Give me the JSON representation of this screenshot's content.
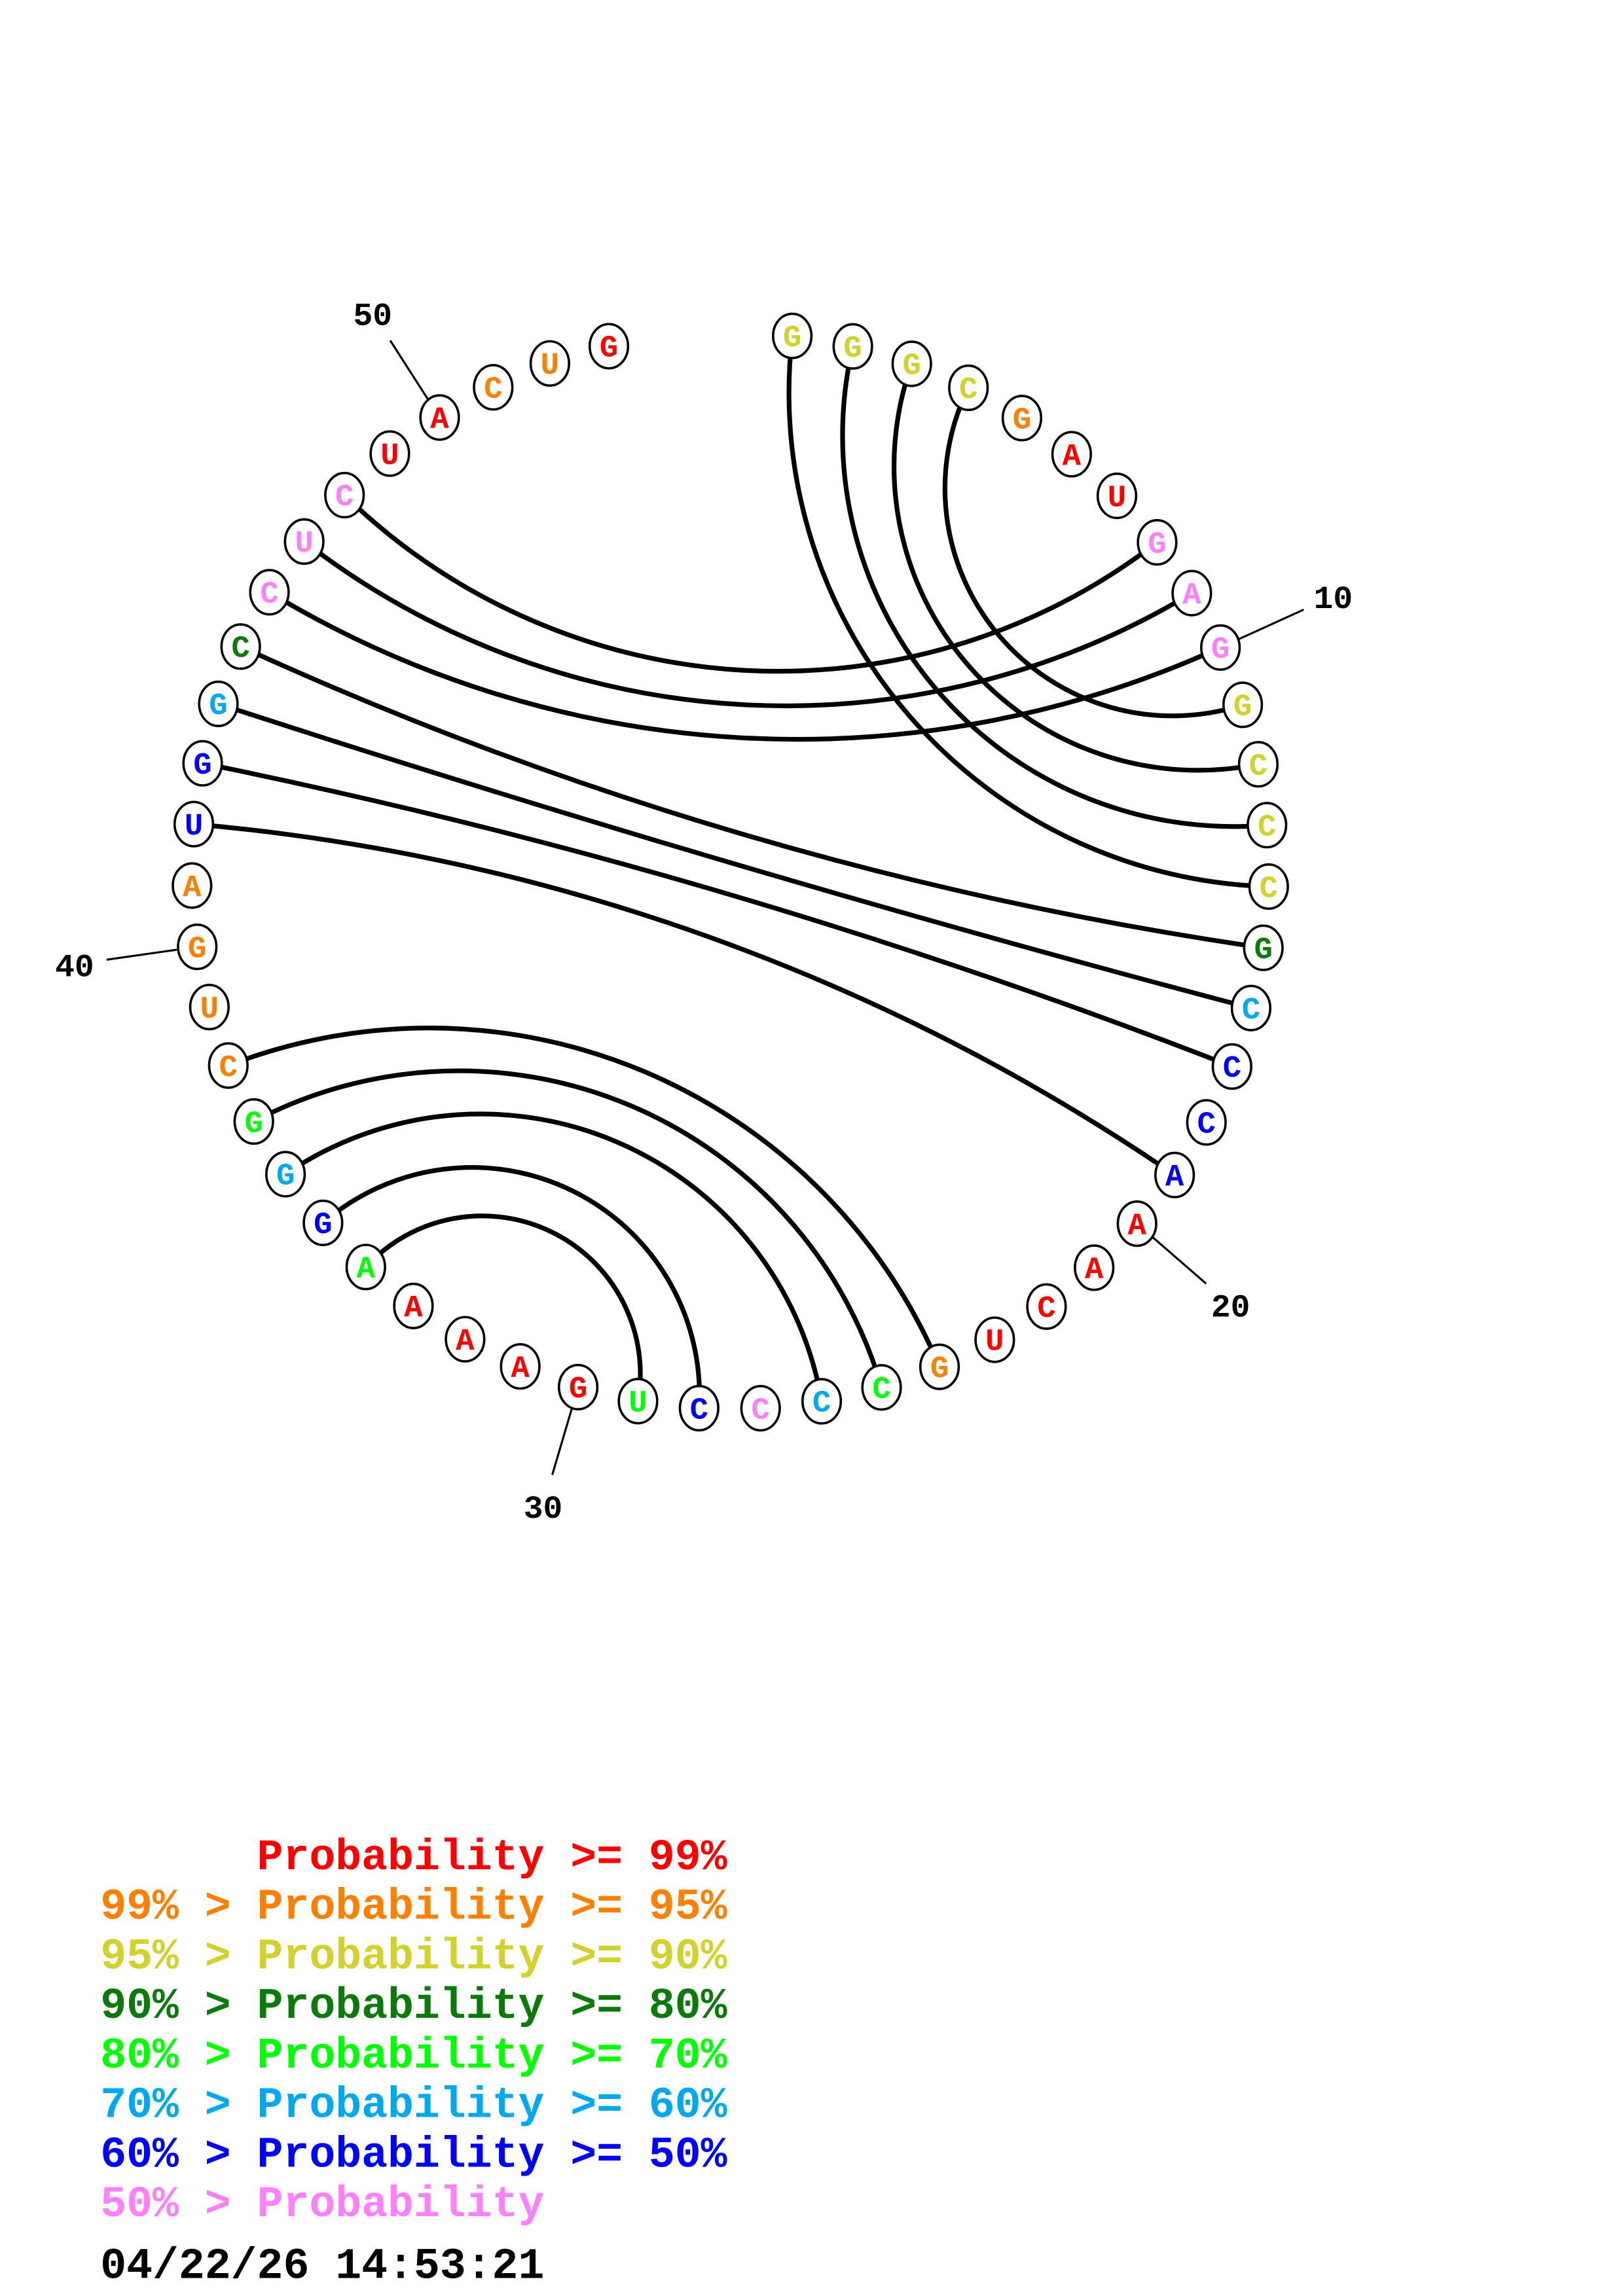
{
  "diagram": {
    "type": "rna-circle-plot",
    "sequence": [
      "G",
      "G",
      "G",
      "C",
      "G",
      "A",
      "U",
      "G",
      "A",
      "G",
      "G",
      "C",
      "C",
      "C",
      "G",
      "C",
      "C",
      "C",
      "A",
      "A",
      "A",
      "C",
      "U",
      "G",
      "C",
      "C",
      "C",
      "C",
      "U",
      "G",
      "A",
      "A",
      "A",
      "A",
      "G",
      "G",
      "G",
      "C",
      "U",
      "G",
      "A",
      "U",
      "G",
      "G",
      "C",
      "C",
      "U",
      "C",
      "U",
      "A",
      "C",
      "U",
      "G"
    ],
    "probability_class": [
      2,
      2,
      2,
      2,
      1,
      0,
      0,
      7,
      7,
      7,
      2,
      2,
      2,
      2,
      3,
      5,
      6,
      6,
      6,
      0,
      0,
      0,
      0,
      1,
      4,
      5,
      7,
      6,
      4,
      0,
      0,
      0,
      0,
      4,
      6,
      5,
      4,
      1,
      1,
      1,
      1,
      6,
      6,
      5,
      3,
      7,
      7,
      7,
      0,
      0,
      1,
      1,
      0
    ],
    "pairs": [
      [
        1,
        14
      ],
      [
        2,
        13
      ],
      [
        3,
        12
      ],
      [
        4,
        11
      ],
      [
        8,
        48
      ],
      [
        9,
        47
      ],
      [
        10,
        46
      ],
      [
        15,
        45
      ],
      [
        16,
        44
      ],
      [
        17,
        43
      ],
      [
        19,
        42
      ],
      [
        24,
        38
      ],
      [
        25,
        37
      ],
      [
        26,
        36
      ],
      [
        28,
        35
      ],
      [
        29,
        34
      ]
    ],
    "position_labels": [
      "10",
      "20",
      "30",
      "40",
      "50"
    ]
  },
  "class_colors": [
    "#ff0000",
    "#ff8000",
    "#d2d22e",
    "#0a7a0a",
    "#00ff00",
    "#00a8f0",
    "#0000ff",
    "#ff80ff"
  ],
  "legend": [
    {
      "text": "      Probability >= 99%",
      "color": "#ff0000"
    },
    {
      "text": "99% > Probability >= 95%",
      "color": "#ff8000"
    },
    {
      "text": "95% > Probability >= 90%",
      "color": "#d2d22e"
    },
    {
      "text": "90% > Probability >= 80%",
      "color": "#0a7a0a"
    },
    {
      "text": "80% > Probability >= 70%",
      "color": "#00ff00"
    },
    {
      "text": "70% > Probability >= 60%",
      "color": "#00a8f0"
    },
    {
      "text": "60% > Probability >= 50%",
      "color": "#0000ff"
    },
    {
      "text": "50% > Probability",
      "color": "#ff80ff"
    }
  ],
  "timestamp": "04/22/26 14:53:21"
}
